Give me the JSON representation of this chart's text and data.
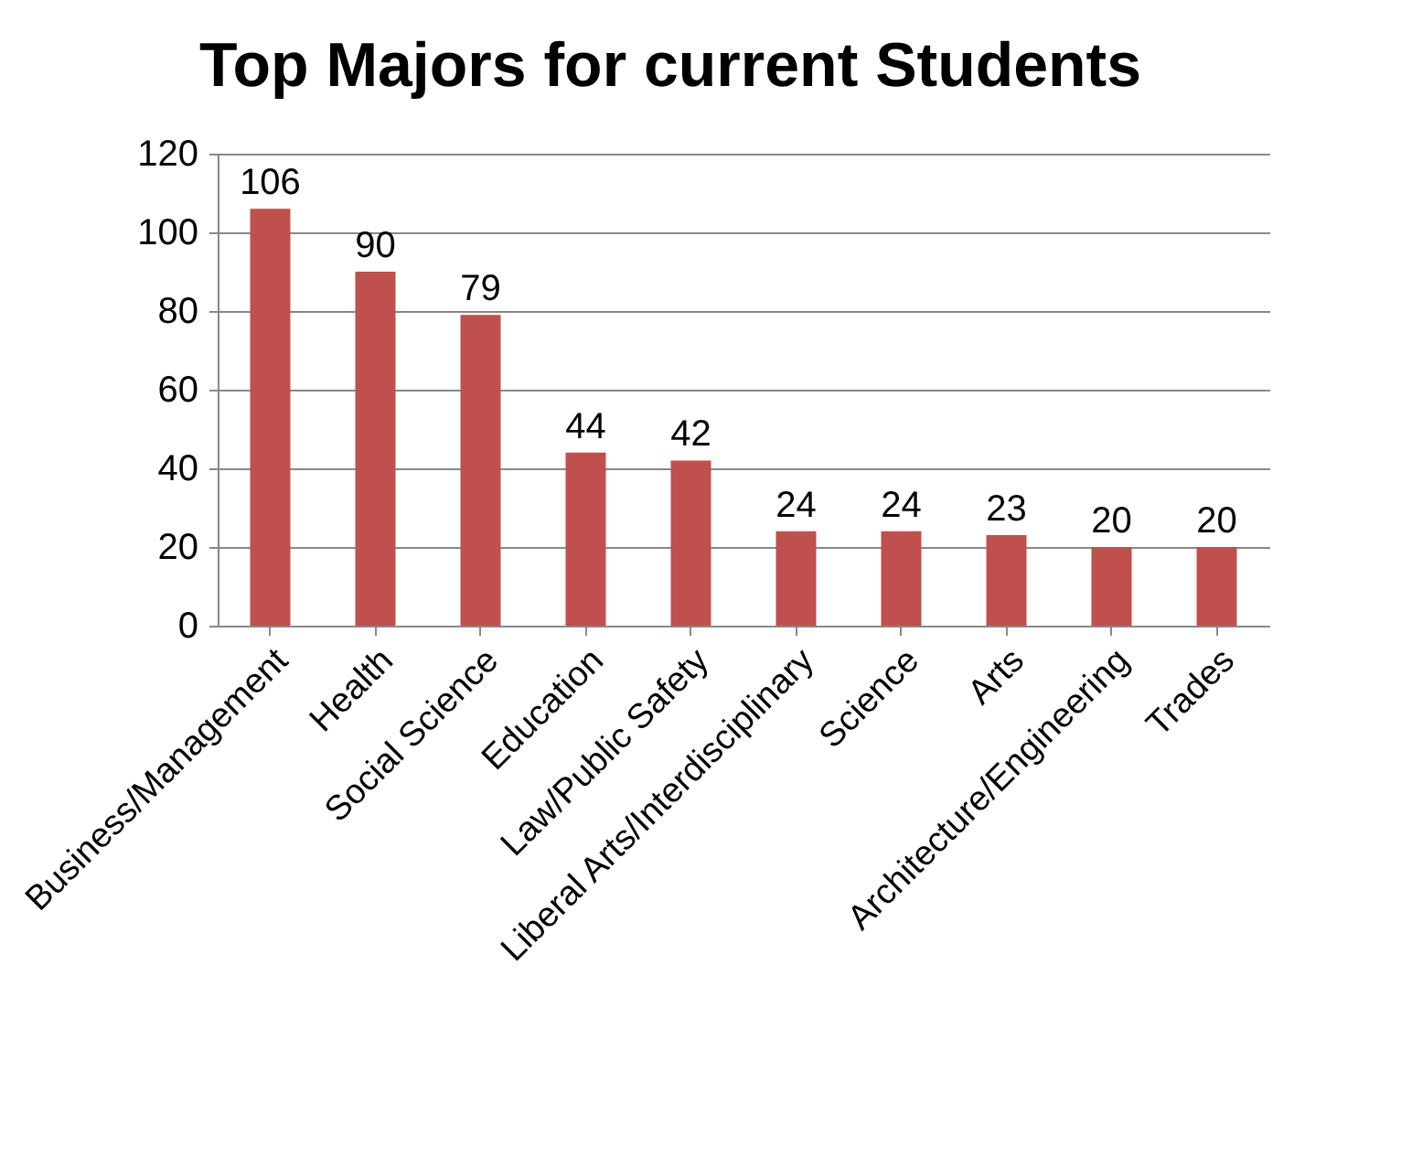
{
  "chart_data": {
    "type": "bar",
    "title": "Top Majors for current Students",
    "categories": [
      "Business/Management",
      "Health",
      "Social Science",
      "Education",
      "Law/Public Safety",
      "Liberal Arts/Interdisciplinary",
      "Science",
      "Arts",
      "Architecture/Engineering",
      "Trades"
    ],
    "values": [
      106,
      90,
      79,
      44,
      42,
      24,
      24,
      23,
      20,
      20
    ],
    "color": "#c0504d",
    "ylim": [
      0,
      120
    ],
    "yticks": [
      0,
      20,
      40,
      60,
      80,
      100,
      120
    ],
    "grid": "y",
    "data_labels": true
  }
}
